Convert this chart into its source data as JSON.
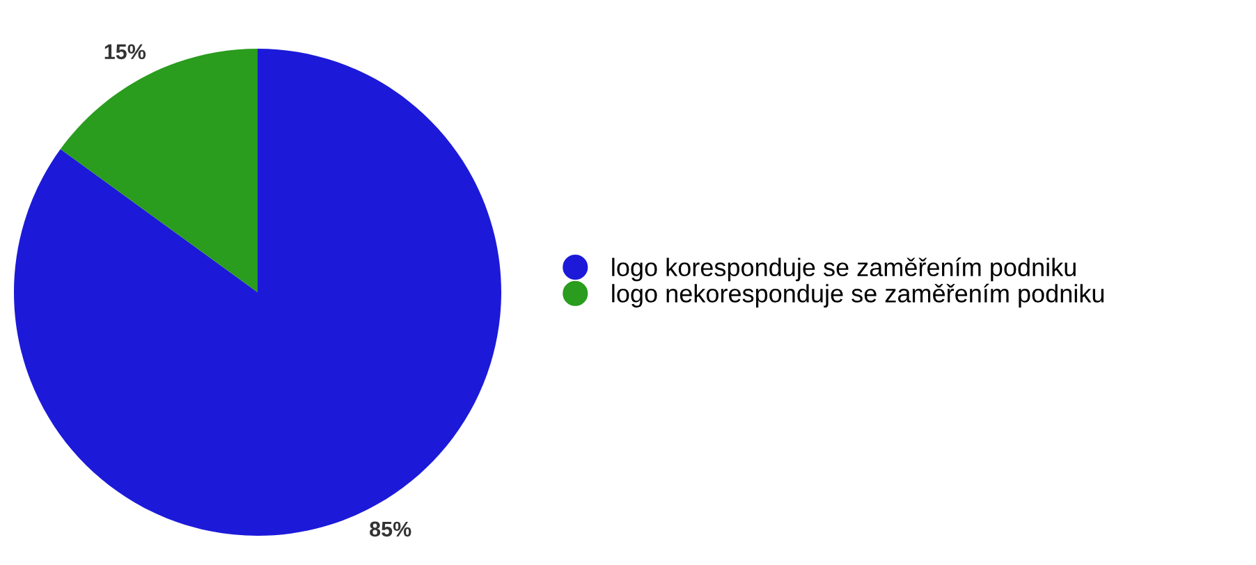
{
  "chart_data": {
    "type": "pie",
    "categories": [
      "logo koresponduje se zaměřením podniku",
      "logo nekoresponduje se zaměřením podniku"
    ],
    "values": [
      85,
      15
    ],
    "value_labels": [
      "85%",
      "15%"
    ],
    "colors": [
      "#1c1ad8",
      "#2a9c1e"
    ],
    "legend": "right"
  }
}
